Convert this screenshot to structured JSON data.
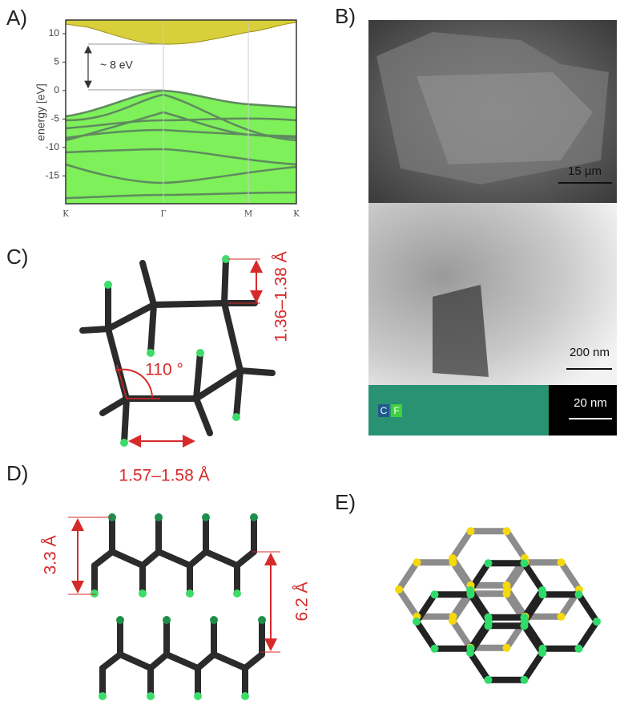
{
  "panels": {
    "a": {
      "label": "A)",
      "y_axis_label": "energy [eV]",
      "ylim": [
        -19.9,
        12.4
      ],
      "yticks": [
        10,
        5,
        0,
        -5,
        -10,
        -15
      ],
      "x_labels": [
        "K",
        "Γ",
        "M",
        "K"
      ],
      "annotation": "~ 8 eV"
    },
    "b": {
      "label": "B)",
      "scale_bars": [
        "15 µm",
        "200 nm",
        "20 nm"
      ],
      "legend": [
        "C",
        "F"
      ]
    },
    "c": {
      "label": "C)",
      "angle": "110 °",
      "bond_c_f": "1.36–1.38 Å",
      "bond_c_c": "1.57–1.58 Å"
    },
    "d": {
      "label": "D)",
      "layer_thickness": "3.3 Å",
      "interlayer_distance": "6.2 Å"
    },
    "e": {
      "label": "E)"
    }
  }
}
